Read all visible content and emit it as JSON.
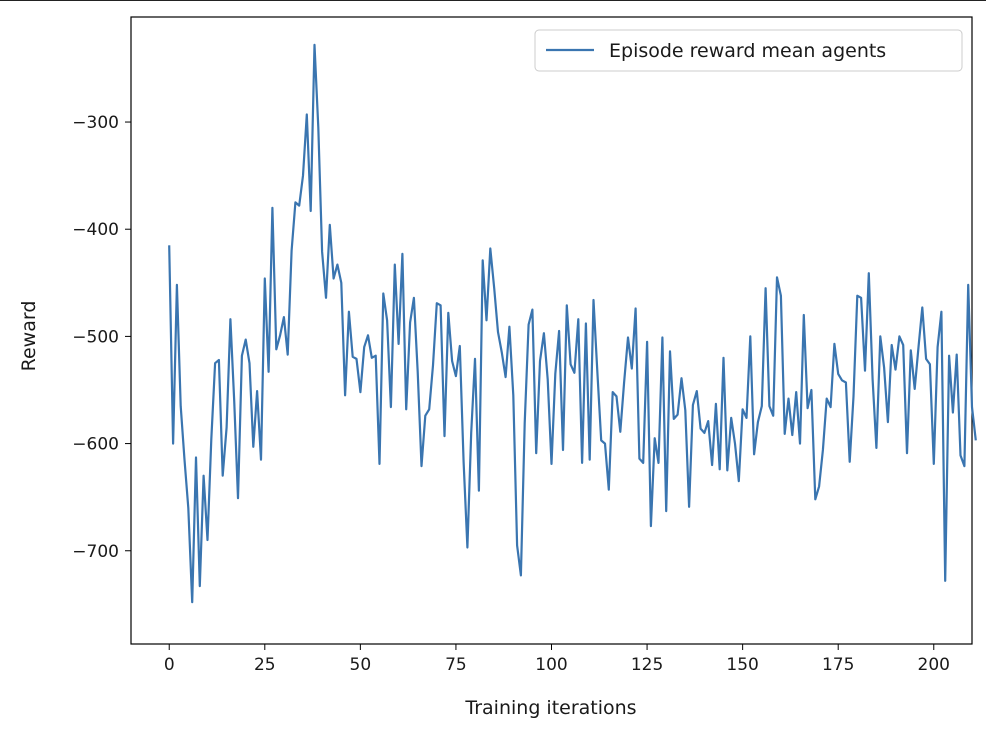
{
  "chart_data": {
    "type": "line",
    "title": "",
    "xlabel": "Training iterations",
    "ylabel": "Reward",
    "xlim": [
      -10,
      210
    ],
    "ylim": [
      -787,
      -202
    ],
    "xticks": [
      0,
      25,
      50,
      75,
      100,
      125,
      150,
      175,
      200
    ],
    "yticks": [
      -700,
      -600,
      -500,
      -400,
      -300
    ],
    "xtick_labels": [
      "0",
      "25",
      "50",
      "75",
      "100",
      "125",
      "150",
      "175",
      "200"
    ],
    "ytick_labels": [
      "−700",
      "−600",
      "−500",
      "−400",
      "−300"
    ],
    "grid": false,
    "legend_position": "top-right",
    "series": [
      {
        "name": "Episode reward mean agents",
        "color": "#3a75b0",
        "values": [
          -415,
          -600,
          -452,
          -565,
          -615,
          -660,
          -748,
          -613,
          -733,
          -630,
          -690,
          -596,
          -525,
          -522,
          -630,
          -585,
          -484,
          -560,
          -651,
          -518,
          -503,
          -525,
          -603,
          -551,
          -615,
          -446,
          -533,
          -380,
          -512,
          -499,
          -482,
          -517,
          -420,
          -375,
          -378,
          -350,
          -293,
          -383,
          -228,
          -305,
          -421,
          -464,
          -396,
          -446,
          -433,
          -450,
          -555,
          -477,
          -519,
          -521,
          -552,
          -510,
          -499,
          -520,
          -518,
          -619,
          -460,
          -485,
          -566,
          -433,
          -507,
          -423,
          -568,
          -487,
          -464,
          -533,
          -621,
          -574,
          -568,
          -527,
          -469,
          -471,
          -593,
          -478,
          -523,
          -537,
          -509,
          -617,
          -697,
          -590,
          -521,
          -644,
          -429,
          -485,
          -418,
          -455,
          -496,
          -515,
          -538,
          -491,
          -555,
          -695,
          -723,
          -581,
          -489,
          -475,
          -609,
          -523,
          -497,
          -540,
          -619,
          -535,
          -495,
          -606,
          -471,
          -526,
          -534,
          -484,
          -618,
          -488,
          -615,
          -466,
          -534,
          -597,
          -600,
          -643,
          -552,
          -556,
          -589,
          -543,
          -501,
          -530,
          -474,
          -614,
          -618,
          -505,
          -677,
          -595,
          -618,
          -501,
          -663,
          -514,
          -577,
          -573,
          -539,
          -569,
          -659,
          -564,
          -551,
          -586,
          -590,
          -579,
          -620,
          -563,
          -624,
          -520,
          -625,
          -576,
          -600,
          -635,
          -568,
          -576,
          -500,
          -610,
          -580,
          -565,
          -455,
          -565,
          -574,
          -445,
          -462,
          -591,
          -558,
          -592,
          -552,
          -600,
          -480,
          -567,
          -550,
          -652,
          -640,
          -606,
          -558,
          -566,
          -507,
          -535,
          -541,
          -543,
          -617,
          -556,
          -462,
          -464,
          -532,
          -441,
          -540,
          -604,
          -500,
          -529,
          -580,
          -508,
          -531,
          -500,
          -508,
          -609,
          -513,
          -549,
          -510,
          -473,
          -521,
          -526,
          -619,
          -510,
          -477,
          -728,
          -518,
          -571,
          -517,
          -611,
          -621,
          -452,
          -566,
          -597
        ]
      }
    ]
  }
}
